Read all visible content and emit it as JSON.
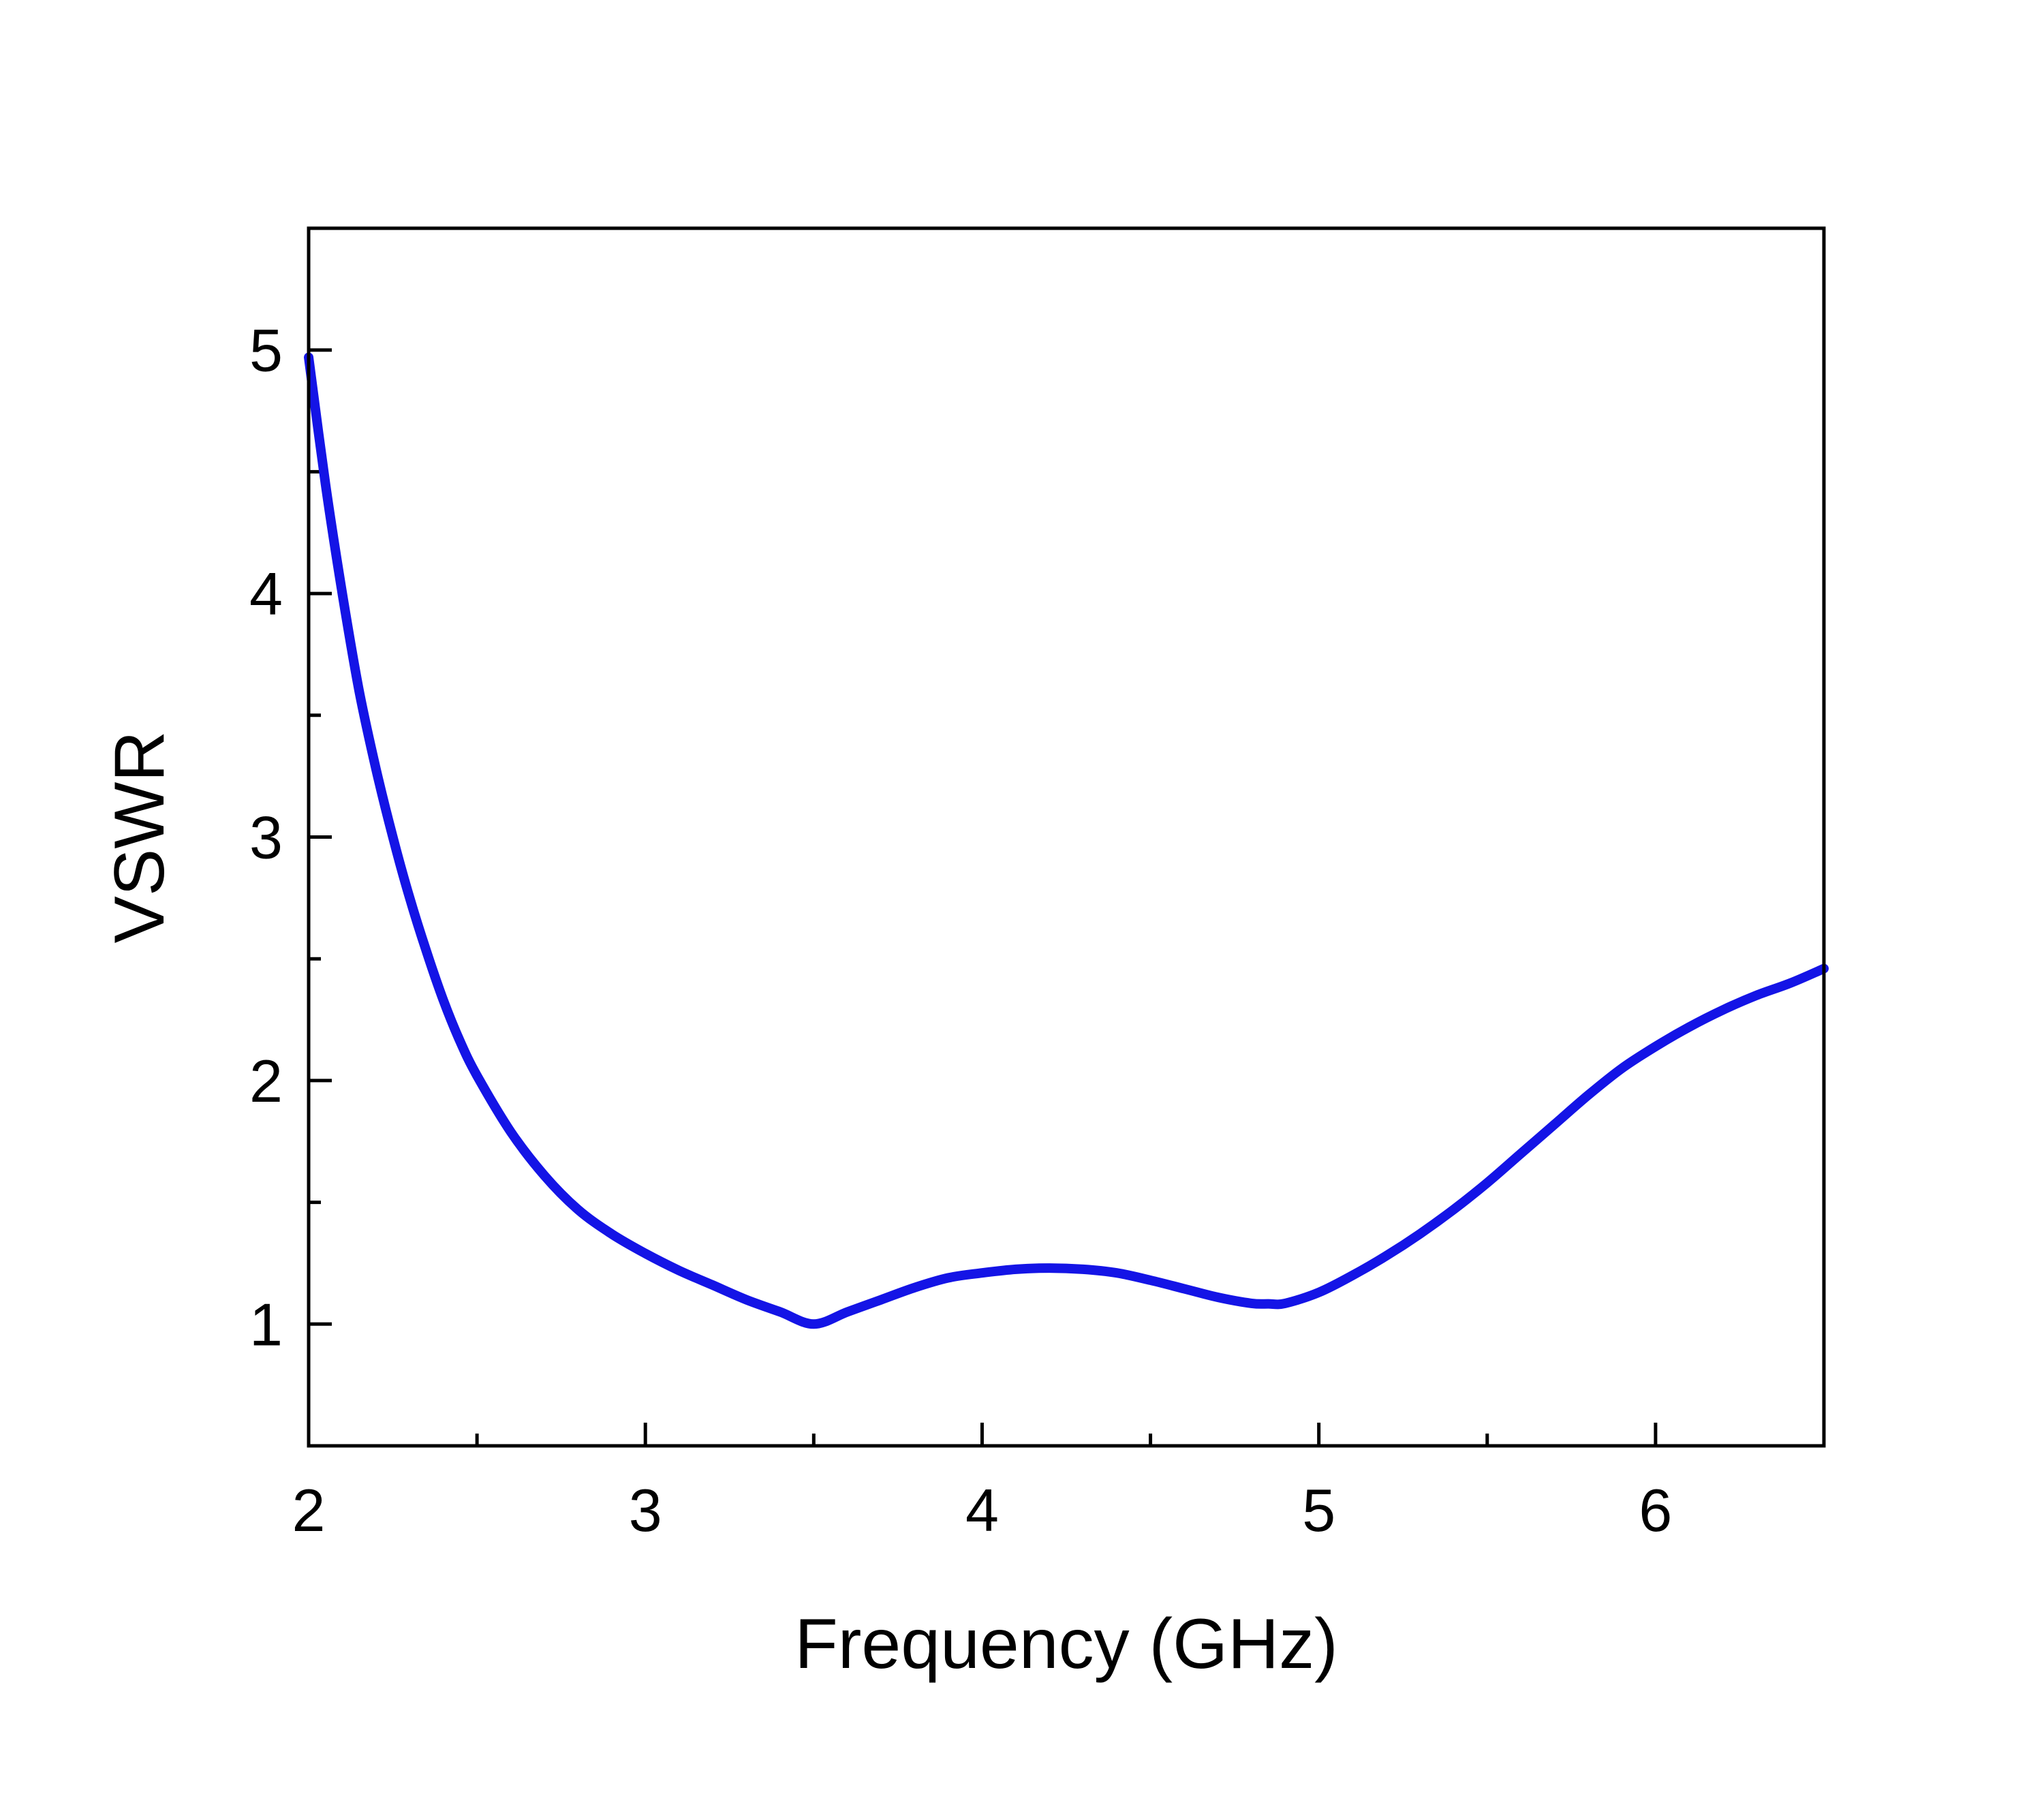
{
  "chart_data": {
    "type": "line",
    "title": "",
    "xlabel": "Frequency (GHz)",
    "ylabel": "VSWR",
    "xlim": [
      2,
      6.5
    ],
    "ylim": [
      0.5,
      5.5
    ],
    "x_ticks": [
      2,
      3,
      4,
      5,
      6
    ],
    "x_tick_labels": [
      "2",
      "3",
      "4",
      "5",
      "6"
    ],
    "x_minor_ticks": [
      2.5,
      3.5,
      4.5,
      5.5
    ],
    "y_ticks": [
      1,
      2,
      3,
      4,
      5
    ],
    "y_tick_labels": [
      "1",
      "2",
      "3",
      "4",
      "5"
    ],
    "y_minor_ticks": [
      1.5,
      2.5,
      3.5,
      4.5
    ],
    "grid": false,
    "legend": "none",
    "series": [
      {
        "color": "#1414e6",
        "x": [
          2.0,
          2.05,
          2.1,
          2.15,
          2.2,
          2.25,
          2.3,
          2.35,
          2.4,
          2.45,
          2.5,
          2.6,
          2.7,
          2.8,
          2.9,
          3.0,
          3.1,
          3.2,
          3.3,
          3.4,
          3.5,
          3.6,
          3.7,
          3.8,
          3.9,
          4.0,
          4.1,
          4.2,
          4.3,
          4.4,
          4.5,
          4.6,
          4.7,
          4.8,
          4.85,
          4.9,
          5.0,
          5.1,
          5.2,
          5.3,
          5.4,
          5.5,
          5.6,
          5.7,
          5.8,
          5.9,
          6.0,
          6.1,
          6.2,
          6.3,
          6.4,
          6.5
        ],
        "y": [
          4.97,
          4.45,
          4.0,
          3.6,
          3.28,
          3.0,
          2.75,
          2.53,
          2.33,
          2.16,
          2.02,
          1.79,
          1.61,
          1.47,
          1.37,
          1.29,
          1.22,
          1.16,
          1.1,
          1.05,
          1.0,
          1.05,
          1.1,
          1.15,
          1.19,
          1.21,
          1.225,
          1.23,
          1.225,
          1.21,
          1.18,
          1.145,
          1.11,
          1.085,
          1.083,
          1.085,
          1.13,
          1.2,
          1.28,
          1.37,
          1.47,
          1.58,
          1.7,
          1.82,
          1.94,
          2.05,
          2.14,
          2.22,
          2.29,
          2.35,
          2.4,
          2.46
        ]
      }
    ]
  }
}
